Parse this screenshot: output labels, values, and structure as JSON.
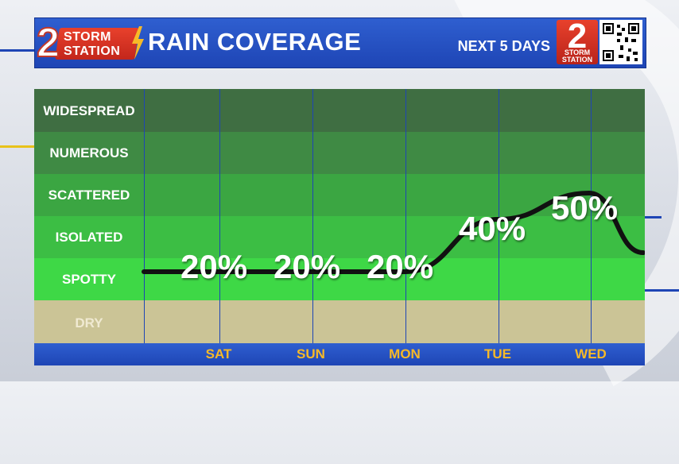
{
  "header": {
    "logo_line1": "STORM",
    "logo_line2": "STATION",
    "logo_digit": "2",
    "title": "RAIN COVERAGE",
    "subtitle": "NEXT 5 DAYS",
    "badge_digit": "2",
    "badge_line1": "STORM",
    "badge_line2": "STATION"
  },
  "colors": {
    "header_blue": "#1e45b5",
    "day_label": "#f7b928",
    "brand_red": "#d0301f"
  },
  "chart_data": {
    "type": "line",
    "x": [
      "SAT",
      "SUN",
      "MON",
      "TUE",
      "WED"
    ],
    "categories_y": [
      "WIDESPREAD",
      "NUMEROUS",
      "SCATTERED",
      "ISOLATED",
      "SPOTTY",
      "DRY"
    ],
    "series": [
      {
        "values": [
          20,
          20,
          20,
          40,
          50
        ],
        "labels": [
          "20%",
          "20%",
          "20%",
          "40%",
          "50%"
        ]
      }
    ],
    "ylim": [
      0,
      60
    ]
  }
}
